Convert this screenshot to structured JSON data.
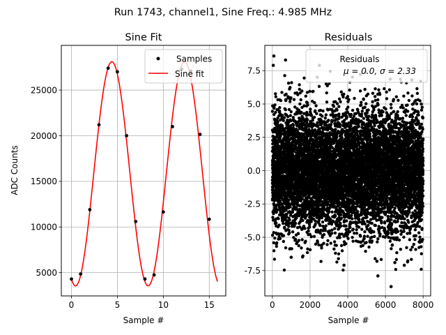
{
  "suptitle": "Run 1743, channel1, Sine Freq.: 4.985 MHz",
  "chart_data": [
    {
      "type": "line",
      "title": "Sine Fit",
      "xlabel": "Sample #",
      "ylabel": "ADC Counts",
      "xlim": [
        -1.1,
        16.8
      ],
      "ylim": [
        2450,
        29900
      ],
      "xticks": [
        0,
        5,
        10,
        15
      ],
      "yticks": [
        5000,
        10000,
        15000,
        20000,
        25000
      ],
      "grid": true,
      "legend_position": "top-right",
      "legend": [
        "Samples",
        "Sine fit"
      ],
      "series": [
        {
          "name": "Samples",
          "style": "markers",
          "color": "#000000",
          "x": [
            0,
            1,
            2,
            3,
            4,
            5,
            6,
            7,
            8,
            9,
            10,
            11,
            12,
            13,
            14,
            15
          ],
          "y": [
            4300,
            4850,
            11900,
            21200,
            27400,
            27000,
            20000,
            10600,
            4300,
            4750,
            11650,
            21000,
            27300,
            27100,
            20150,
            10850
          ]
        },
        {
          "name": "Sine fit",
          "style": "line",
          "color": "#ff0000",
          "function": {
            "offset": 15830,
            "amplitude": 12280,
            "period": 7.9,
            "peak_x": 4.4,
            "x_range": [
              0,
              15.9
            ]
          }
        }
      ]
    },
    {
      "type": "scatter",
      "title": "Residuals",
      "xlabel": "Sample #",
      "ylabel": "",
      "xlim": [
        -400,
        8400
      ],
      "ylim": [
        -9.4,
        9.4
      ],
      "xticks": [
        0,
        2000,
        4000,
        6000,
        8000
      ],
      "yticks": [
        -7.5,
        -5.0,
        -2.5,
        0.0,
        2.5,
        5.0,
        7.5
      ],
      "grid": true,
      "legend_position": "top-right",
      "legend_title": "Residuals",
      "legend_text": "μ = 0.0, σ = 2.33",
      "n_points": 8000,
      "mean": 0.0,
      "sigma": 2.33,
      "color": "#000000",
      "outliers": [
        {
          "x": 80,
          "y": 8.6
        },
        {
          "x": 50,
          "y": 7.9
        },
        {
          "x": 700,
          "y": 8.3
        },
        {
          "x": 2500,
          "y": 7.9
        },
        {
          "x": 5600,
          "y": -7.9
        },
        {
          "x": 6300,
          "y": -8.7
        },
        {
          "x": 5550,
          "y": -6.8
        },
        {
          "x": 6500,
          "y": -6.9
        },
        {
          "x": 3800,
          "y": -7.1
        },
        {
          "x": 1000,
          "y": -6.5
        },
        {
          "x": 7400,
          "y": 6.8
        },
        {
          "x": 7000,
          "y": -7.1
        }
      ]
    }
  ]
}
